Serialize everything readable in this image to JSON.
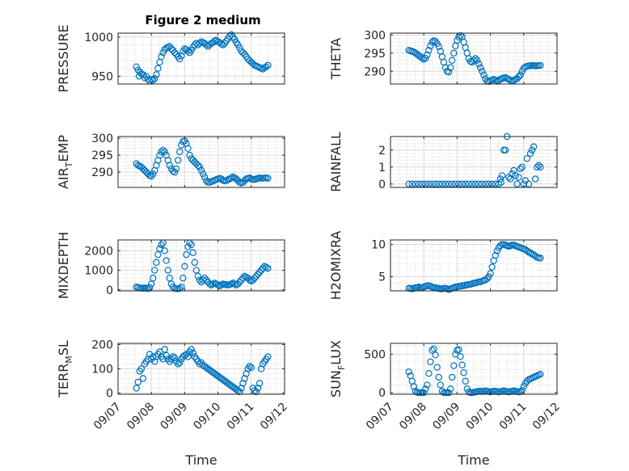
{
  "figure_title": "Figure 2 medium",
  "chart_data": [
    {
      "type": "scatter",
      "title": "Figure 2 medium",
      "ylabel": "PRESSURE",
      "xlabel": "",
      "xlim": [
        7,
        12
      ],
      "ylim": [
        940,
        1005
      ],
      "yticks": [
        950,
        1000
      ],
      "x": [
        7.55,
        7.6,
        7.63,
        7.66,
        7.7,
        7.75,
        7.8,
        7.85,
        7.9,
        7.95,
        8.0,
        8.05,
        8.1,
        8.15,
        8.2,
        8.25,
        8.3,
        8.35,
        8.4,
        8.45,
        8.5,
        8.55,
        8.6,
        8.65,
        8.7,
        8.75,
        8.8,
        8.85,
        8.9,
        8.95,
        9.0,
        9.05,
        9.1,
        9.15,
        9.2,
        9.25,
        9.3,
        9.35,
        9.4,
        9.45,
        9.5,
        9.55,
        9.6,
        9.65,
        9.7,
        9.75,
        9.8,
        9.85,
        9.9,
        9.95,
        10.0,
        10.05,
        10.1,
        10.15,
        10.2,
        10.25,
        10.3,
        10.35,
        10.4,
        10.45,
        10.5,
        10.55,
        10.6,
        10.65,
        10.7,
        10.75,
        10.8,
        10.85,
        10.9,
        10.95,
        11.0,
        11.05,
        11.1,
        11.15,
        11.2,
        11.25,
        11.3,
        11.35,
        11.4,
        11.45,
        11.5
      ],
      "y": [
        962,
        958,
        950,
        955,
        953,
        952,
        948,
        950,
        946,
        944,
        946,
        945,
        947,
        952,
        960,
        968,
        975,
        980,
        984,
        986,
        987,
        988,
        985,
        983,
        980,
        978,
        975,
        972,
        976,
        982,
        985,
        984,
        982,
        980,
        983,
        987,
        990,
        992,
        990,
        992,
        994,
        993,
        992,
        990,
        988,
        990,
        992,
        993,
        995,
        996,
        994,
        993,
        991,
        990,
        992,
        995,
        998,
        1001,
        1003,
        1000,
        997,
        993,
        990,
        986,
        982,
        980,
        978,
        975,
        972,
        970,
        968,
        966,
        964,
        963,
        962,
        961,
        960,
        959,
        961,
        962,
        964
      ]
    },
    {
      "type": "scatter",
      "ylabel": "THETA",
      "xlabel": "",
      "xlim": [
        7,
        12
      ],
      "ylim": [
        286.5,
        300.5
      ],
      "yticks": [
        290,
        295,
        300
      ],
      "x": [
        7.55,
        7.6,
        7.65,
        7.7,
        7.75,
        7.8,
        7.85,
        7.9,
        7.95,
        8.0,
        8.05,
        8.1,
        8.15,
        8.2,
        8.25,
        8.3,
        8.35,
        8.4,
        8.45,
        8.5,
        8.55,
        8.6,
        8.65,
        8.7,
        8.75,
        8.8,
        8.85,
        8.9,
        8.95,
        9.0,
        9.05,
        9.1,
        9.15,
        9.2,
        9.25,
        9.3,
        9.35,
        9.4,
        9.45,
        9.5,
        9.55,
        9.6,
        9.65,
        9.7,
        9.75,
        9.8,
        9.85,
        9.9,
        9.95,
        10.0,
        10.05,
        10.1,
        10.15,
        10.2,
        10.25,
        10.3,
        10.35,
        10.4,
        10.45,
        10.5,
        10.55,
        10.6,
        10.65,
        10.7,
        10.75,
        10.8,
        10.85,
        10.9,
        10.95,
        11.0,
        11.05,
        11.1,
        11.15,
        11.2,
        11.25,
        11.3,
        11.35,
        11.4,
        11.45,
        11.5
      ],
      "y": [
        295.8,
        295.6,
        295.5,
        295.3,
        295,
        294.7,
        294.3,
        294,
        293.6,
        293.3,
        293.6,
        294.5,
        295.8,
        297,
        298,
        298.4,
        298.2,
        297.6,
        296.8,
        295.5,
        294,
        292.5,
        291,
        290,
        289.8,
        291,
        293,
        295,
        297,
        298.5,
        299.4,
        299.8,
        299.5,
        298,
        296.5,
        295,
        293.5,
        292.7,
        292.5,
        293,
        293.5,
        293,
        292,
        291,
        290,
        289,
        288,
        287.3,
        287.2,
        287.4,
        287.6,
        287.8,
        287.6,
        287.4,
        287.5,
        287.8,
        288,
        288.2,
        288.3,
        288,
        287.8,
        287.5,
        287.3,
        287.5,
        287.8,
        288,
        288.5,
        289,
        290,
        290.8,
        291.2,
        291.4,
        291.5,
        291.5,
        291.6,
        291.6,
        291.5,
        291.5,
        291.6,
        291.6
      ]
    },
    {
      "type": "scatter",
      "ylabel": "AIR_TEMP",
      "ylabel_main": "AIR",
      "ylabel_sub": "T",
      "ylabel_tail": "EMP",
      "xlabel": "",
      "xlim": [
        7,
        12
      ],
      "ylim": [
        285.5,
        300.5
      ],
      "yticks": [
        290,
        295,
        300
      ],
      "x": [
        7.55,
        7.6,
        7.65,
        7.7,
        7.75,
        7.8,
        7.85,
        7.9,
        7.95,
        8.0,
        8.05,
        8.1,
        8.15,
        8.2,
        8.25,
        8.3,
        8.35,
        8.4,
        8.45,
        8.5,
        8.55,
        8.6,
        8.65,
        8.7,
        8.75,
        8.8,
        8.85,
        8.9,
        8.95,
        9.0,
        9.05,
        9.1,
        9.15,
        9.2,
        9.25,
        9.3,
        9.35,
        9.4,
        9.45,
        9.5,
        9.55,
        9.6,
        9.65,
        9.7,
        9.75,
        9.8,
        9.85,
        9.9,
        9.95,
        10.0,
        10.05,
        10.1,
        10.15,
        10.2,
        10.25,
        10.3,
        10.35,
        10.4,
        10.45,
        10.5,
        10.55,
        10.6,
        10.65,
        10.7,
        10.75,
        10.8,
        10.85,
        10.9,
        10.95,
        11.0,
        11.05,
        11.1,
        11.15,
        11.2,
        11.25,
        11.3,
        11.35,
        11.4,
        11.45,
        11.5
      ],
      "y": [
        292.5,
        292,
        291.8,
        291.5,
        291,
        290.5,
        290,
        289.5,
        289,
        288.8,
        289.5,
        290.5,
        292,
        293.5,
        295,
        296,
        296.5,
        296,
        295,
        293.5,
        292,
        291,
        290.3,
        290,
        291,
        293.5,
        296,
        298,
        299,
        299.2,
        298.5,
        297,
        295,
        294,
        293.5,
        293,
        292.5,
        292,
        291.5,
        290.5,
        289.5,
        288.5,
        287.5,
        287,
        287,
        287.2,
        287.4,
        287.6,
        287.8,
        288,
        288.2,
        288,
        287.6,
        287.4,
        287.5,
        287.8,
        288,
        288.3,
        288.6,
        288.3,
        288,
        287.5,
        287,
        286.8,
        287,
        287.5,
        288,
        288.2,
        288.3,
        288,
        287.8,
        287.8,
        288,
        288.2,
        288.3,
        288.2,
        288.2,
        288.3,
        288.3,
        288.2
      ]
    },
    {
      "type": "scatter",
      "ylabel": "RAINFALL",
      "xlabel": "",
      "xlim": [
        7,
        12
      ],
      "ylim": [
        -0.2,
        2.8
      ],
      "yticks": [
        0,
        1,
        2
      ],
      "x": [
        7.55,
        7.65,
        7.75,
        7.85,
        7.95,
        8.05,
        8.15,
        8.25,
        8.35,
        8.45,
        8.55,
        8.65,
        8.75,
        8.85,
        8.95,
        9.05,
        9.15,
        9.25,
        9.35,
        9.45,
        9.55,
        9.65,
        9.75,
        9.85,
        9.95,
        10.05,
        10.15,
        10.25,
        10.3,
        10.32,
        10.35,
        10.4,
        10.45,
        10.5,
        10.55,
        10.6,
        10.65,
        10.7,
        10.75,
        10.8,
        10.85,
        10.9,
        10.95,
        11.0,
        11.05,
        11.1,
        11.15,
        11.2,
        11.25,
        11.3,
        11.35,
        11.4,
        11.45,
        11.5
      ],
      "y": [
        0,
        0,
        0,
        0,
        0,
        0,
        0,
        0,
        0,
        0,
        0,
        0,
        0,
        0,
        0,
        0,
        0,
        0,
        0,
        0,
        0,
        0,
        0,
        0,
        0,
        0,
        0,
        0,
        0.3,
        0.1,
        0.5,
        2.0,
        2.0,
        2.8,
        0.4,
        0.3,
        0.6,
        0.8,
        0.5,
        0.0,
        0.4,
        0.9,
        1.0,
        0.0,
        0.2,
        1.5,
        0.0,
        1.8,
        2.0,
        2.2,
        0.3,
        1.0,
        1.1,
        1.0
      ]
    },
    {
      "type": "scatter",
      "ylabel": "MIXDEPTH",
      "xlabel": "",
      "xlim": [
        7,
        12
      ],
      "ylim": [
        -50,
        2550
      ],
      "yticks": [
        0,
        1000,
        2000
      ],
      "x": [
        7.55,
        7.6,
        7.65,
        7.7,
        7.75,
        7.8,
        7.85,
        7.9,
        7.95,
        8.0,
        8.05,
        8.1,
        8.15,
        8.2,
        8.25,
        8.3,
        8.35,
        8.4,
        8.45,
        8.5,
        8.55,
        8.6,
        8.65,
        8.7,
        8.75,
        8.8,
        8.85,
        8.9,
        8.95,
        9.0,
        9.05,
        9.1,
        9.15,
        9.2,
        9.25,
        9.3,
        9.35,
        9.4,
        9.45,
        9.5,
        9.55,
        9.6,
        9.65,
        9.7,
        9.75,
        9.8,
        9.85,
        9.9,
        9.95,
        10.0,
        10.05,
        10.1,
        10.15,
        10.2,
        10.25,
        10.3,
        10.35,
        10.4,
        10.45,
        10.5,
        10.55,
        10.6,
        10.65,
        10.7,
        10.75,
        10.8,
        10.85,
        10.9,
        10.95,
        11.0,
        11.05,
        11.1,
        11.15,
        11.2,
        11.25,
        11.3,
        11.35,
        11.4,
        11.45,
        11.5
      ],
      "y": [
        150,
        120,
        100,
        90,
        80,
        100,
        80,
        60,
        120,
        300,
        600,
        1000,
        1400,
        1800,
        2100,
        2300,
        2400,
        2000,
        1500,
        1000,
        600,
        300,
        150,
        80,
        60,
        50,
        80,
        150,
        600,
        1200,
        1800,
        2200,
        2400,
        2300,
        1900,
        1400,
        1000,
        700,
        500,
        400,
        500,
        600,
        500,
        400,
        300,
        250,
        300,
        350,
        300,
        250,
        200,
        250,
        300,
        280,
        260,
        250,
        270,
        300,
        350,
        300,
        250,
        300,
        400,
        500,
        600,
        700,
        650,
        600,
        500,
        450,
        500,
        600,
        700,
        800,
        900,
        1000,
        1100,
        1200,
        1150,
        1100
      ]
    },
    {
      "type": "scatter",
      "ylabel": "H2OMIXRA",
      "xlabel": "",
      "xlim": [
        7,
        12
      ],
      "ylim": [
        2.8,
        10.7
      ],
      "yticks": [
        5,
        10
      ],
      "x": [
        7.55,
        7.6,
        7.65,
        7.7,
        7.75,
        7.8,
        7.85,
        7.9,
        7.95,
        8.0,
        8.05,
        8.1,
        8.15,
        8.2,
        8.25,
        8.3,
        8.35,
        8.4,
        8.45,
        8.5,
        8.55,
        8.6,
        8.65,
        8.7,
        8.75,
        8.8,
        8.85,
        8.9,
        8.95,
        9.0,
        9.05,
        9.1,
        9.15,
        9.2,
        9.25,
        9.3,
        9.35,
        9.4,
        9.45,
        9.5,
        9.55,
        9.6,
        9.65,
        9.7,
        9.75,
        9.8,
        9.85,
        9.9,
        9.95,
        10.0,
        10.05,
        10.1,
        10.15,
        10.2,
        10.25,
        10.3,
        10.35,
        10.4,
        10.45,
        10.5,
        10.55,
        10.6,
        10.65,
        10.7,
        10.75,
        10.8,
        10.85,
        10.9,
        10.95,
        11.0,
        11.05,
        11.1,
        11.15,
        11.2,
        11.25,
        11.3,
        11.35,
        11.4,
        11.45,
        11.5
      ],
      "y": [
        3.2,
        3.2,
        3.1,
        3.2,
        3.3,
        3.3,
        3.4,
        3.3,
        3.3,
        3.4,
        3.5,
        3.6,
        3.6,
        3.5,
        3.4,
        3.3,
        3.3,
        3.2,
        3.2,
        3.1,
        3.1,
        3.2,
        3.2,
        3.1,
        3.0,
        3.1,
        3.2,
        3.3,
        3.4,
        3.4,
        3.5,
        3.5,
        3.6,
        3.6,
        3.7,
        3.7,
        3.8,
        3.8,
        3.9,
        4.0,
        4.0,
        4.1,
        4.2,
        4.2,
        4.3,
        4.4,
        4.5,
        4.7,
        5.0,
        5.5,
        6.5,
        7.5,
        8.3,
        9.0,
        9.5,
        9.8,
        10.0,
        10.0,
        9.9,
        9.8,
        9.7,
        9.8,
        9.9,
        9.9,
        9.8,
        9.7,
        9.6,
        9.5,
        9.4,
        9.3,
        9.2,
        9.0,
        8.8,
        8.7,
        8.5,
        8.4,
        8.2,
        8.0,
        7.9,
        7.9
      ]
    },
    {
      "type": "scatter",
      "ylabel": "TERR_MSL",
      "ylabel_main": "TERR",
      "ylabel_sub": "M",
      "ylabel_tail": "SL",
      "xlabel": "Time",
      "xlim": [
        7,
        12
      ],
      "ylim": [
        -5,
        205
      ],
      "yticks": [
        0,
        100,
        200
      ],
      "xticks": [
        "09/07",
        "09/08",
        "09/09",
        "09/10",
        "09/11",
        "09/12"
      ],
      "x": [
        7.55,
        7.6,
        7.65,
        7.7,
        7.75,
        7.8,
        7.85,
        7.9,
        7.95,
        8.0,
        8.05,
        8.1,
        8.15,
        8.2,
        8.25,
        8.3,
        8.35,
        8.4,
        8.45,
        8.5,
        8.55,
        8.6,
        8.65,
        8.7,
        8.75,
        8.8,
        8.85,
        8.9,
        8.95,
        9.0,
        9.05,
        9.1,
        9.15,
        9.2,
        9.25,
        9.3,
        9.35,
        9.4,
        9.45,
        9.5,
        9.55,
        9.6,
        9.65,
        9.7,
        9.75,
        9.8,
        9.85,
        9.9,
        9.95,
        10.0,
        10.05,
        10.1,
        10.15,
        10.2,
        10.25,
        10.3,
        10.35,
        10.4,
        10.45,
        10.5,
        10.55,
        10.6,
        10.65,
        10.7,
        10.75,
        10.8,
        10.85,
        10.9,
        10.95,
        11.0,
        11.05,
        11.1,
        11.15,
        11.2,
        11.25,
        11.3,
        11.35,
        11.4,
        11.45,
        11.5
      ],
      "y": [
        20,
        45,
        90,
        100,
        60,
        120,
        130,
        140,
        160,
        140,
        150,
        130,
        150,
        160,
        170,
        150,
        140,
        180,
        155,
        140,
        130,
        140,
        150,
        145,
        130,
        120,
        125,
        140,
        150,
        155,
        160,
        150,
        170,
        180,
        165,
        150,
        140,
        130,
        120,
        125,
        115,
        110,
        105,
        100,
        95,
        90,
        85,
        80,
        75,
        70,
        65,
        60,
        55,
        50,
        45,
        40,
        35,
        30,
        25,
        20,
        15,
        10,
        5,
        20,
        40,
        60,
        80,
        100,
        110,
        105,
        20,
        10,
        5,
        20,
        40,
        100,
        120,
        130,
        140,
        150
      ]
    },
    {
      "type": "scatter",
      "ylabel": "SUN_FLUX",
      "ylabel_main": "SUN",
      "ylabel_sub": "F",
      "ylabel_tail": "LUX",
      "xlabel": "Time",
      "xlim": [
        7,
        12
      ],
      "ylim": [
        -20,
        640
      ],
      "yticks": [
        0,
        500
      ],
      "xticks": [
        "09/07",
        "09/08",
        "09/09",
        "09/10",
        "09/11",
        "09/12"
      ],
      "x": [
        7.55,
        7.6,
        7.65,
        7.7,
        7.75,
        7.8,
        7.85,
        7.9,
        7.95,
        8.0,
        8.05,
        8.1,
        8.15,
        8.2,
        8.25,
        8.3,
        8.35,
        8.4,
        8.45,
        8.5,
        8.55,
        8.6,
        8.65,
        8.7,
        8.75,
        8.8,
        8.85,
        8.9,
        8.95,
        9.0,
        9.05,
        9.1,
        9.15,
        9.2,
        9.25,
        9.3,
        9.35,
        9.4,
        9.45,
        9.5,
        9.55,
        9.6,
        9.65,
        9.7,
        9.75,
        9.8,
        9.85,
        9.9,
        9.95,
        10.0,
        10.05,
        10.1,
        10.15,
        10.2,
        10.25,
        10.3,
        10.35,
        10.4,
        10.45,
        10.5,
        10.55,
        10.6,
        10.65,
        10.7,
        10.75,
        10.8,
        10.85,
        10.9,
        10.95,
        11.0,
        11.05,
        11.1,
        11.15,
        11.2,
        11.25,
        11.3,
        11.35,
        11.4,
        11.45,
        11.5
      ],
      "y": [
        270,
        220,
        150,
        80,
        20,
        5,
        0,
        0,
        0,
        0,
        50,
        100,
        250,
        400,
        550,
        570,
        490,
        330,
        200,
        100,
        20,
        0,
        0,
        0,
        0,
        50,
        200,
        350,
        500,
        550,
        560,
        470,
        360,
        260,
        150,
        50,
        10,
        0,
        0,
        5,
        10,
        15,
        20,
        20,
        15,
        20,
        25,
        20,
        15,
        10,
        15,
        20,
        20,
        15,
        10,
        15,
        20,
        25,
        20,
        15,
        10,
        15,
        20,
        25,
        20,
        15,
        10,
        15,
        30,
        80,
        120,
        150,
        170,
        180,
        190,
        200,
        210,
        220,
        230,
        240
      ]
    }
  ]
}
